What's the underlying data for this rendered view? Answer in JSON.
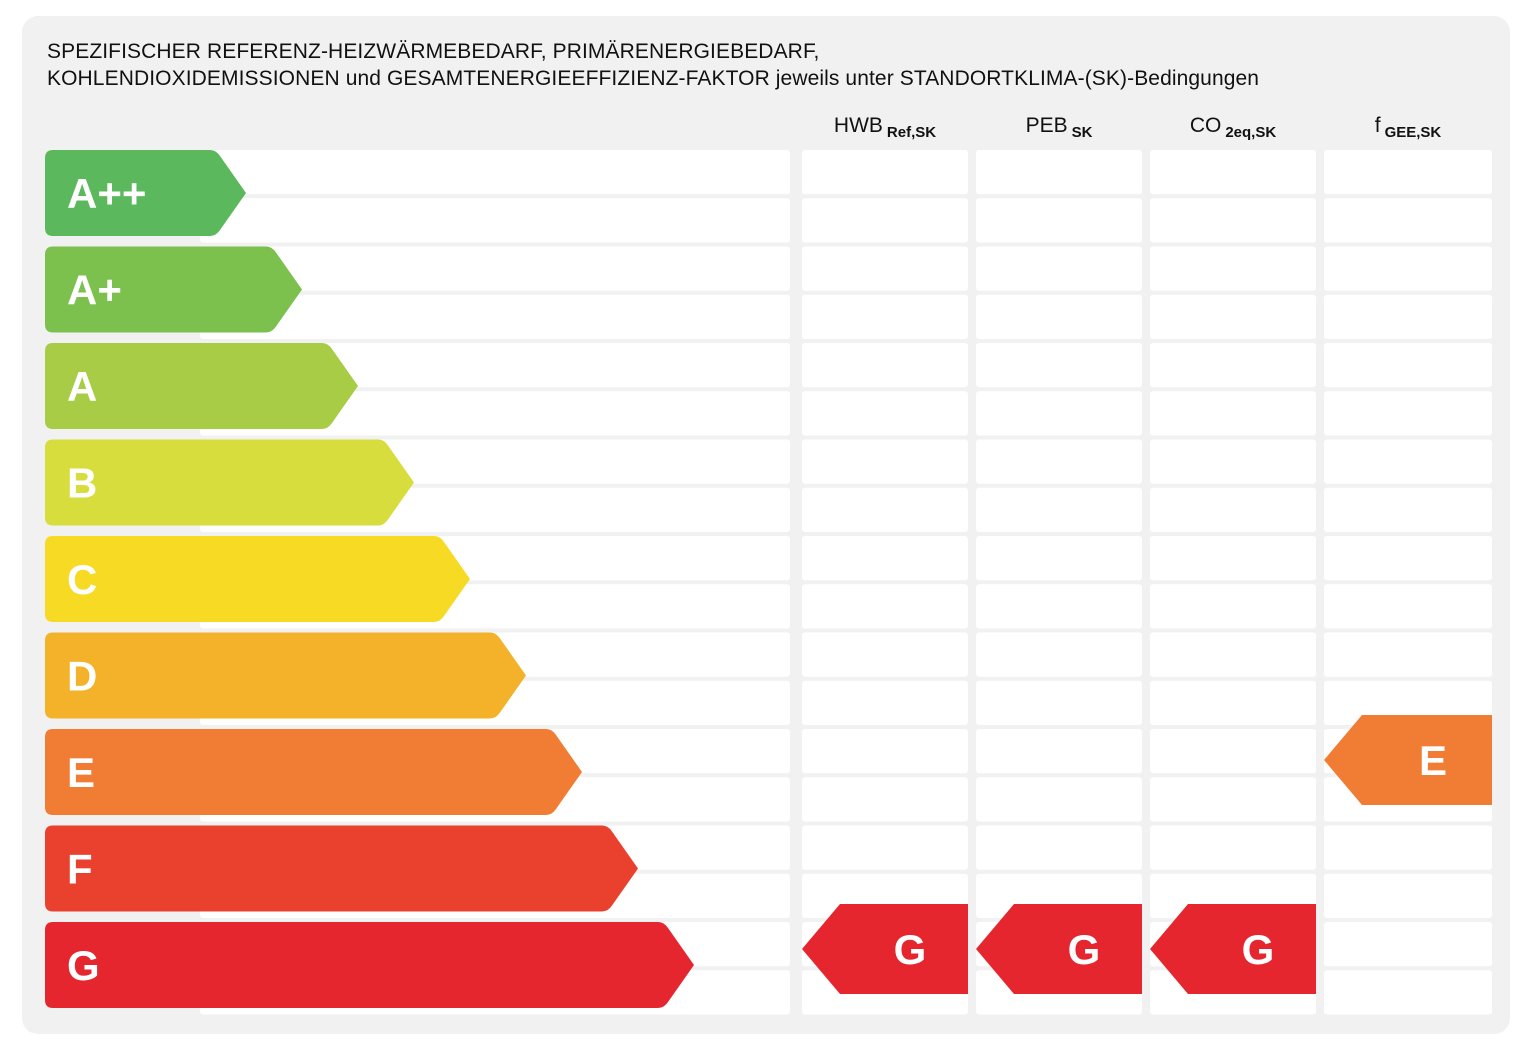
{
  "chart_data": {
    "type": "table",
    "title_lines": [
      "SPEZIFISCHER REFERENZ-HEIZWÄRMEBEDARF, PRIMÄRENERGIEBEDARF,",
      "KOHLENDIOXIDEMISSIONEN und GESAMTENERGIEEFFIZIENZ-FAKTOR jeweils unter STANDORTKLIMA-(SK)-Bedingungen"
    ],
    "classes": [
      {
        "label": "A++",
        "color": "#5cb85c"
      },
      {
        "label": "A+",
        "color": "#7cc04e"
      },
      {
        "label": "A",
        "color": "#a8cc45"
      },
      {
        "label": "B",
        "color": "#d7dd3c"
      },
      {
        "label": "C",
        "color": "#f6da24"
      },
      {
        "label": "D",
        "color": "#f3b22a"
      },
      {
        "label": "E",
        "color": "#f07d33"
      },
      {
        "label": "F",
        "color": "#ea402e"
      },
      {
        "label": "G",
        "color": "#e5262f"
      }
    ],
    "columns": [
      {
        "main": "HWB",
        "sub": "Ref,SK",
        "rating": "G"
      },
      {
        "main": "PEB",
        "sub": "SK",
        "rating": "G"
      },
      {
        "main": "CO",
        "sub": "2eq,SK",
        "rating": "G"
      },
      {
        "main": "f",
        "sub": "GEE,SK",
        "rating": "E"
      }
    ]
  }
}
